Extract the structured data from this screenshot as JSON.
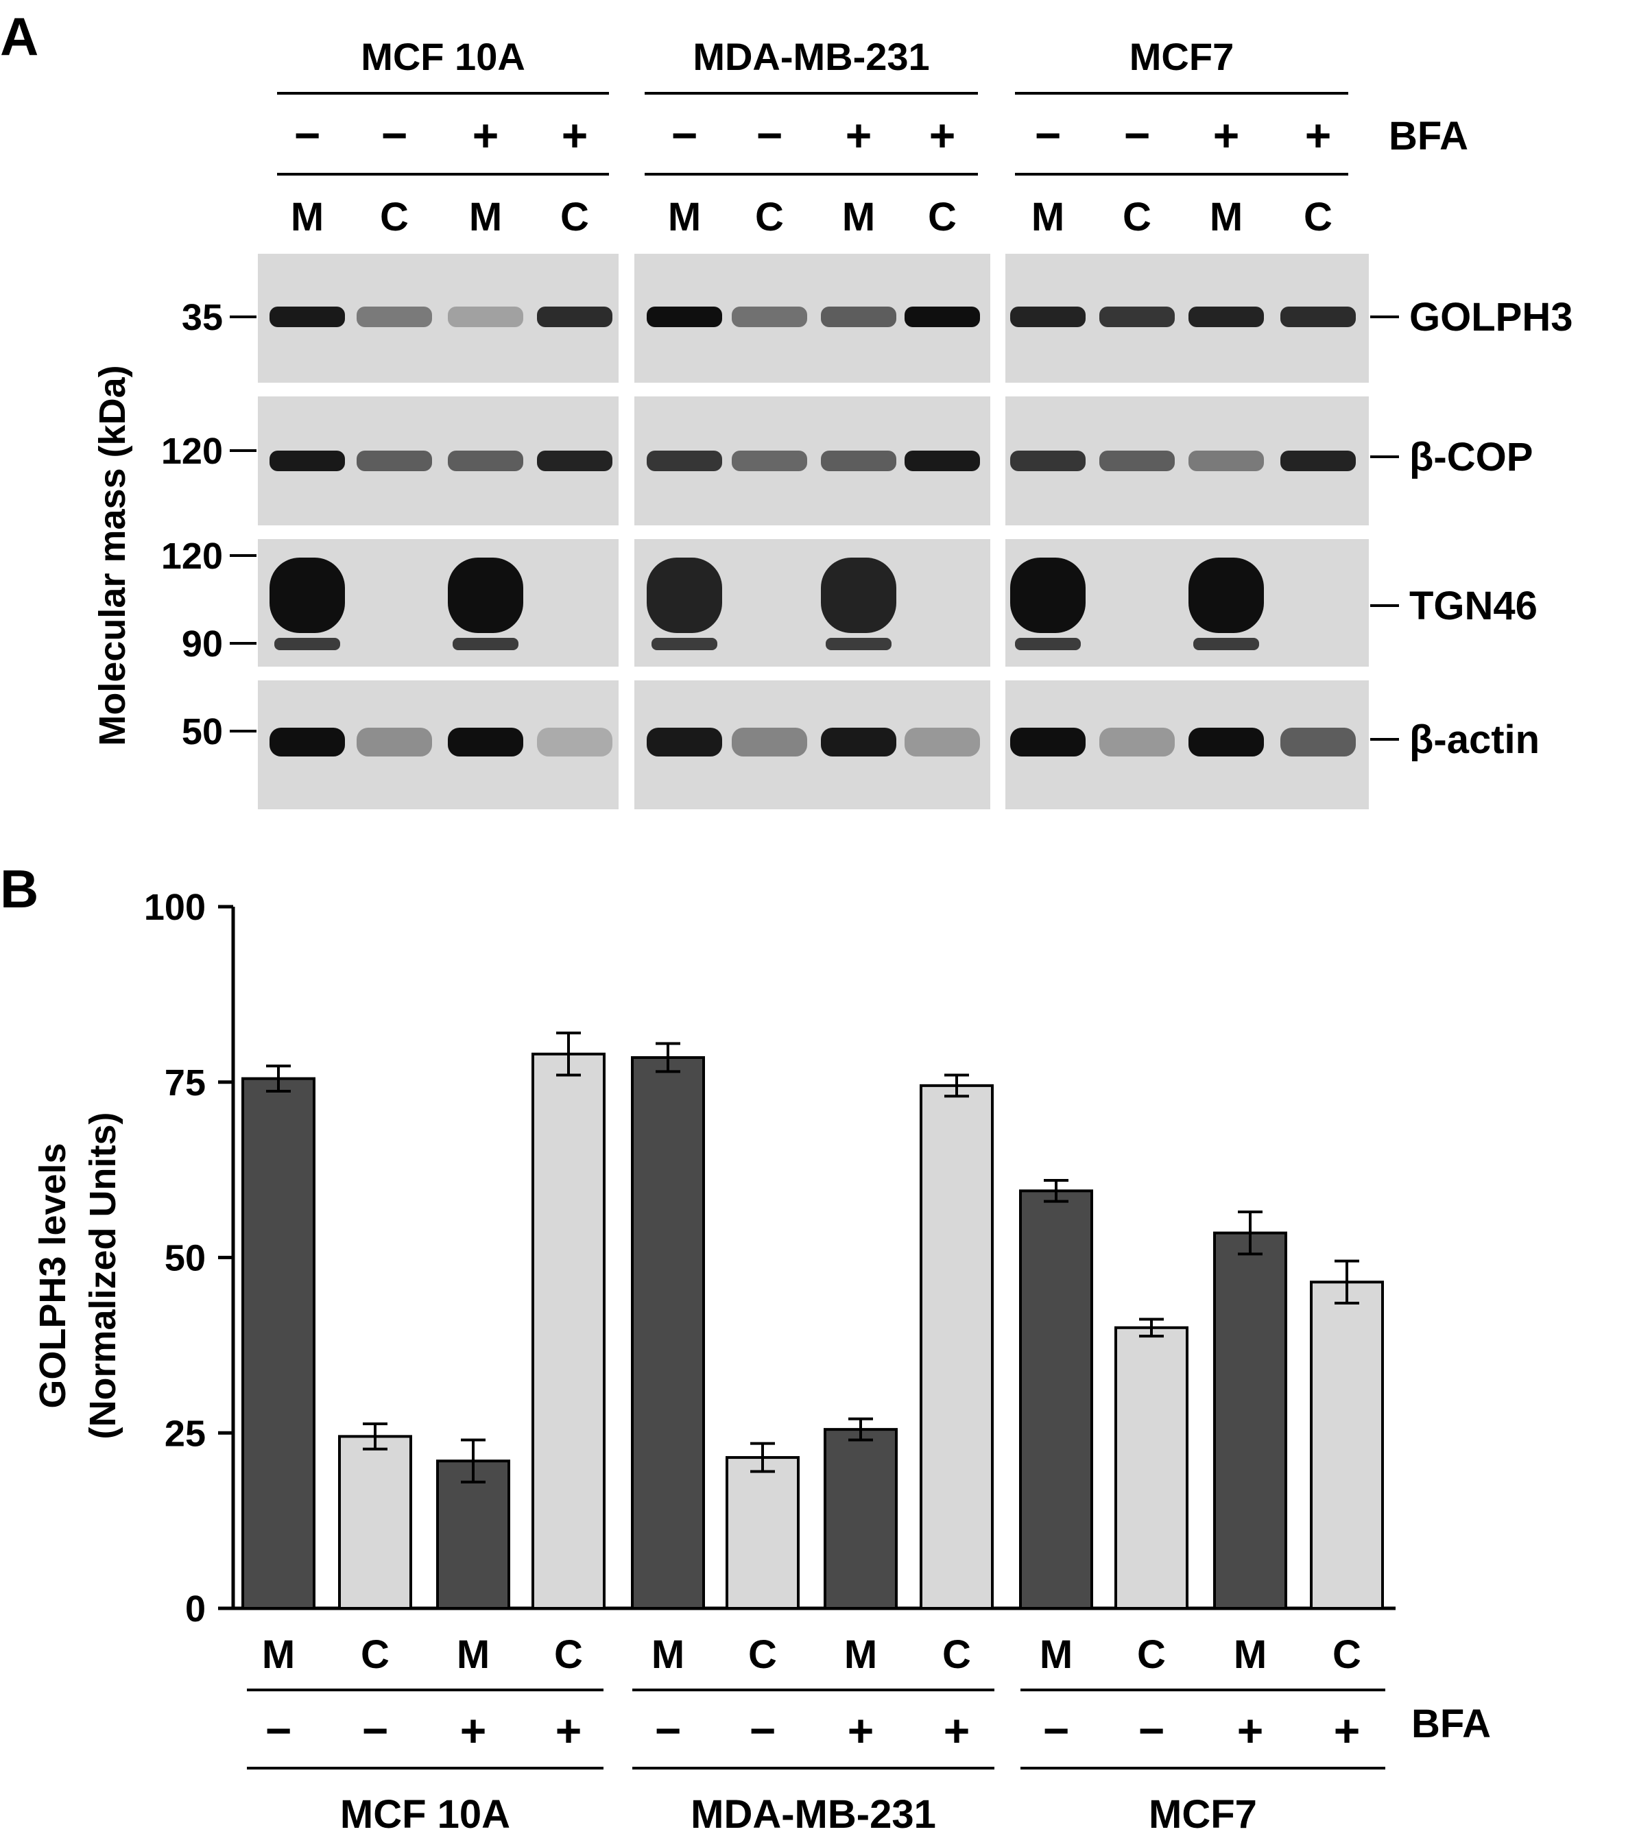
{
  "panel_a": {
    "label": "A",
    "treatment_label": "BFA",
    "y_axis_label": "Molecular mass (kDa)",
    "cell_lines": [
      "MCF 10A",
      "MDA-MB-231",
      "MCF7"
    ],
    "bfa_signs": [
      "−",
      "−",
      "+",
      "+"
    ],
    "fractions": [
      "M",
      "C",
      "M",
      "C"
    ],
    "blots": [
      {
        "protein": "GOLPH3",
        "markers": [
          "35"
        ],
        "bands": [
          [
            0.95,
            0.45,
            0.25,
            0.85
          ],
          [
            1.0,
            0.5,
            0.6,
            1.0
          ],
          [
            0.9,
            0.8,
            0.9,
            0.85
          ]
        ]
      },
      {
        "protein": "β-COP",
        "markers": [
          "120"
        ],
        "bands": [
          [
            0.95,
            0.6,
            0.6,
            0.9
          ],
          [
            0.8,
            0.55,
            0.6,
            0.95
          ],
          [
            0.8,
            0.6,
            0.45,
            0.9
          ]
        ]
      },
      {
        "protein": "TGN46",
        "markers": [
          "120",
          "90"
        ],
        "bands": [
          [
            1.0,
            0.0,
            1.0,
            0.0
          ],
          [
            0.9,
            0.0,
            0.9,
            0.0
          ],
          [
            1.0,
            0.0,
            1.0,
            0.0
          ]
        ]
      },
      {
        "protein": "β-actin",
        "markers": [
          "50"
        ],
        "bands": [
          [
            1.0,
            0.35,
            1.0,
            0.2
          ],
          [
            0.95,
            0.4,
            0.95,
            0.3
          ],
          [
            1.0,
            0.3,
            1.0,
            0.6
          ]
        ]
      }
    ]
  },
  "panel_b": {
    "label": "B",
    "treatment_label": "BFA",
    "chart_data": {
      "type": "bar",
      "ylabel_lines": [
        "GOLPH3 levels",
        "(Normalized Units)"
      ],
      "ylim": [
        0,
        100
      ],
      "yticks": [
        0,
        25,
        50,
        75,
        100
      ],
      "groups": [
        "MCF 10A",
        "MDA-MB-231",
        "MCF7"
      ],
      "categories": [
        "M",
        "C",
        "M",
        "C",
        "M",
        "C",
        "M",
        "C",
        "M",
        "C",
        "M",
        "C"
      ],
      "bfa": [
        "−",
        "−",
        "+",
        "+",
        "−",
        "−",
        "+",
        "+",
        "−",
        "−",
        "+",
        "+"
      ],
      "values": [
        75.5,
        24.5,
        21,
        79,
        78.5,
        21.5,
        25.5,
        74.5,
        59.5,
        40,
        53.5,
        46.5
      ],
      "errors": [
        1.8,
        1.8,
        3,
        3,
        2,
        2,
        1.5,
        1.5,
        1.5,
        1.2,
        3,
        3
      ],
      "colors": {
        "M": "#4a4a4a",
        "C": "#d8d8d8"
      }
    }
  }
}
